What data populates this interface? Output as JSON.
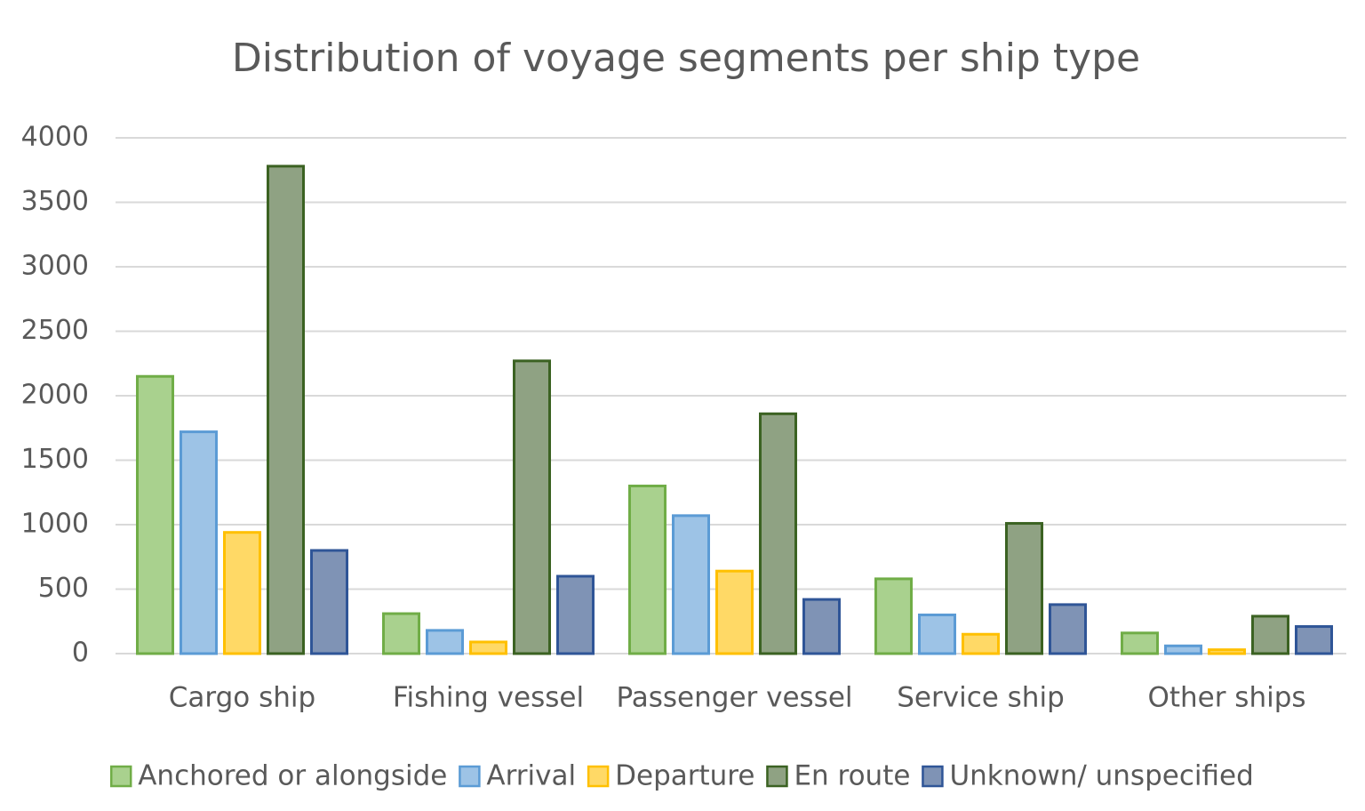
{
  "chart_data": {
    "type": "bar",
    "title": "Distribution of voyage segments per ship type",
    "categories": [
      "Cargo ship",
      "Fishing vessel",
      "Passenger vessel",
      "Service ship",
      "Other ships"
    ],
    "series": [
      {
        "name": "Anchored or alongside",
        "color": "#a9d18e",
        "edgecolor": "#70ad47",
        "values": [
          2150,
          310,
          1300,
          580,
          160
        ]
      },
      {
        "name": "Arrival",
        "color": "#9dc3e6",
        "edgecolor": "#5b9bd5",
        "values": [
          1720,
          180,
          1070,
          300,
          60
        ]
      },
      {
        "name": "Departure",
        "color": "#ffd966",
        "edgecolor": "#ffc000",
        "values": [
          940,
          90,
          640,
          150,
          30
        ]
      },
      {
        "name": "En route",
        "color": "#8fa283",
        "edgecolor": "#3b6222",
        "values": [
          3780,
          2270,
          1860,
          1010,
          290
        ]
      },
      {
        "name": "Unknown/ unspecified",
        "color": "#7f93b5",
        "edgecolor": "#2f5597",
        "values": [
          800,
          600,
          420,
          380,
          210
        ]
      }
    ],
    "ylim": [
      0,
      4000
    ],
    "yticks": [
      0,
      500,
      1000,
      1500,
      2000,
      2500,
      3000,
      3500,
      4000
    ],
    "grid": true,
    "legend": "bottom"
  }
}
